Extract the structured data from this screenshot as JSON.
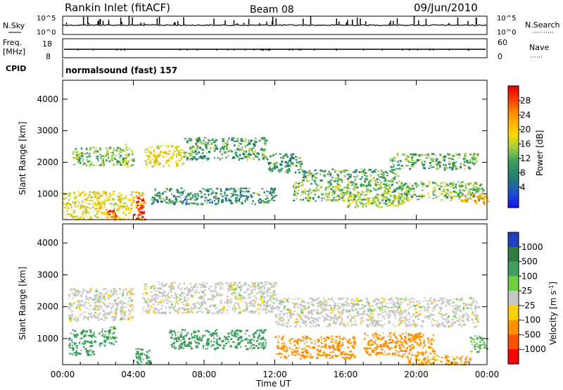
{
  "header": {
    "station": "Rankin Inlet (fitACF)",
    "beam": "Beam 08",
    "date": "09/Jun/2010"
  },
  "strips": {
    "nsky_label": "N.Sky",
    "nsky_ticks": [
      "10^5",
      "10^0"
    ],
    "nsearch_label": "N.Search",
    "freq_label_1": "Freq.",
    "freq_label_2": "[MHz]",
    "freq_ticks": [
      "18",
      "8"
    ],
    "nave_label": "Nave",
    "nave_ticks": [
      "60",
      "0"
    ],
    "cpid_label": "CPID",
    "cpid_text": "normalsound (fast) 157"
  },
  "power_scale": {
    "label": "Power [dB]",
    "ticks": [
      "28",
      "24",
      "20",
      "16",
      "12",
      "8",
      "4"
    ],
    "colors": [
      "#e60000",
      "#ff3300",
      "#ff8000",
      "#ffb000",
      "#ffd800",
      "#a8d040",
      "#3aa060",
      "#1f7f6a",
      "#1f50d0",
      "#1010ff"
    ]
  },
  "velocity_scale": {
    "label": "Velocity [m s^-1]",
    "ticks": [
      "1000",
      "500",
      "100",
      "25",
      "-25",
      "-100",
      "-500",
      "-1000"
    ],
    "colors": [
      "#2040c0",
      "#2e7f3f",
      "#3fa060",
      "#6fd040",
      "#c8c8c8",
      "#ffd000",
      "#ff9000",
      "#ff5000",
      "#ff0000"
    ]
  },
  "chart_data": [
    {
      "type": "heatmap",
      "name": "power",
      "title": "",
      "ylabel": "Slant Range [km]",
      "xlabel": "",
      "ylim": [
        180,
        4600
      ],
      "yticks": [
        1000,
        2000,
        3000,
        4000
      ],
      "xlim": [
        0,
        24
      ],
      "x_tick_labels": [],
      "color_field": "Power [dB]",
      "color_range": [
        0,
        30
      ],
      "bands": [
        {
          "t0": 0.5,
          "t1": 3.5,
          "r0": 1900,
          "r1": 2500,
          "v": 12
        },
        {
          "t0": 3.5,
          "t1": 4.0,
          "r0": 1900,
          "r1": 2600,
          "v": 14
        },
        {
          "t0": 4.6,
          "t1": 6.8,
          "r0": 1900,
          "r1": 2550,
          "v": 16
        },
        {
          "t0": 6.8,
          "t1": 11.5,
          "r0": 2100,
          "r1": 2800,
          "v": 10
        },
        {
          "t0": 11.5,
          "t1": 13.5,
          "r0": 1700,
          "r1": 2300,
          "v": 9
        },
        {
          "t0": 13.5,
          "t1": 19.0,
          "r0": 1400,
          "r1": 1800,
          "v": 10
        },
        {
          "t0": 18.5,
          "t1": 23.5,
          "r0": 1800,
          "r1": 2300,
          "v": 11
        },
        {
          "t0": 0.0,
          "t1": 4.5,
          "r0": 200,
          "r1": 1100,
          "v": 16
        },
        {
          "t0": 2.5,
          "t1": 3.0,
          "r0": 200,
          "r1": 600,
          "v": 26
        },
        {
          "t0": 4.0,
          "t1": 4.6,
          "r0": 200,
          "r1": 900,
          "v": 28
        },
        {
          "t0": 5.0,
          "t1": 12.0,
          "r0": 700,
          "r1": 1200,
          "v": 8
        },
        {
          "t0": 13.0,
          "t1": 23.8,
          "r0": 800,
          "r1": 1400,
          "v": 12
        },
        {
          "t0": 16.0,
          "t1": 19.5,
          "r0": 600,
          "r1": 1000,
          "v": 14
        },
        {
          "t0": 22.5,
          "t1": 24.0,
          "r0": 700,
          "r1": 1000,
          "v": 22
        }
      ]
    },
    {
      "type": "heatmap",
      "name": "velocity",
      "title": "",
      "ylabel": "Slant Range [km]",
      "xlabel": "Time UT",
      "ylim": [
        180,
        4600
      ],
      "yticks": [
        1000,
        2000,
        3000,
        4000
      ],
      "xlim": [
        0,
        24
      ],
      "x_tick_labels": [
        "00:00",
        "04:00",
        "08:00",
        "12:00",
        "16:00",
        "20:00",
        "00:00"
      ],
      "color_field": "Velocity [m s^-1]",
      "color_range": [
        -1000,
        1000
      ],
      "bands": [
        {
          "t0": 0.3,
          "t1": 4.0,
          "r0": 1600,
          "r1": 2600,
          "v": 0
        },
        {
          "t0": 4.5,
          "t1": 12.0,
          "r0": 1800,
          "r1": 2800,
          "v": 0
        },
        {
          "t0": 12.0,
          "t1": 23.5,
          "r0": 1400,
          "r1": 2300,
          "v": 0
        },
        {
          "t0": 0.3,
          "t1": 1.8,
          "r0": 500,
          "r1": 1300,
          "v": 150
        },
        {
          "t0": 2.0,
          "t1": 3.0,
          "r0": 800,
          "r1": 1400,
          "v": 80
        },
        {
          "t0": 4.0,
          "t1": 5.0,
          "r0": 200,
          "r1": 700,
          "v": 150
        },
        {
          "t0": 6.0,
          "t1": 11.5,
          "r0": 700,
          "r1": 1300,
          "v": 150
        },
        {
          "t0": 12.0,
          "t1": 16.5,
          "r0": 400,
          "r1": 1100,
          "v": -200
        },
        {
          "t0": 17.0,
          "t1": 21.0,
          "r0": 500,
          "r1": 1200,
          "v": -150
        },
        {
          "t0": 19.0,
          "t1": 23.0,
          "r0": 200,
          "r1": 500,
          "v": -80
        },
        {
          "t0": 23.0,
          "t1": 24.0,
          "r0": 600,
          "r1": 1100,
          "v": 60
        }
      ]
    }
  ]
}
